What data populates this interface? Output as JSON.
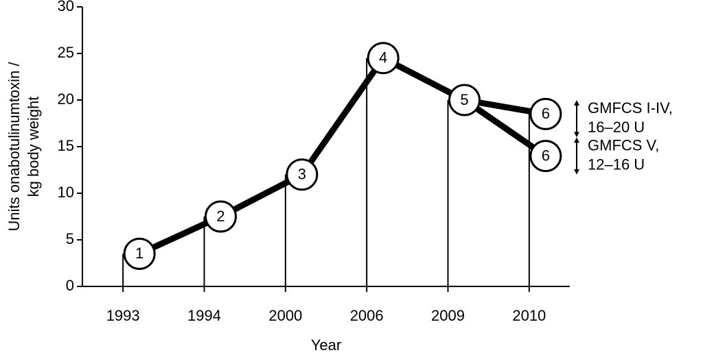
{
  "chart_data": {
    "type": "line",
    "y_label": [
      "Units onabotulinumtoxin /",
      "kg body weight"
    ],
    "x_label": "Year",
    "categories": [
      "1993",
      "1994",
      "2000",
      "2006",
      "2009",
      "2010"
    ],
    "series": [
      {
        "color": "#000000",
        "values": [
          3.5,
          7.5,
          12,
          24.5,
          20,
          18.5
        ],
        "point_labels": [
          "1",
          "2",
          "3",
          "4",
          "5",
          "6"
        ]
      },
      {
        "color": "#000000",
        "values": [
          null,
          null,
          null,
          null,
          20,
          14
        ],
        "point_labels": [
          null,
          null,
          null,
          null,
          null,
          "6"
        ]
      }
    ],
    "ylim": [
      0,
      30
    ],
    "yticks": [
      0,
      5,
      10,
      15,
      20,
      25,
      30
    ],
    "annotations": [
      {
        "text": [
          "GMFCS I-IV,",
          "16–20 U"
        ],
        "range": [
          16,
          20
        ]
      },
      {
        "text": [
          "GMFCS V,",
          "12–16 U"
        ],
        "range": [
          12,
          16
        ]
      }
    ]
  }
}
